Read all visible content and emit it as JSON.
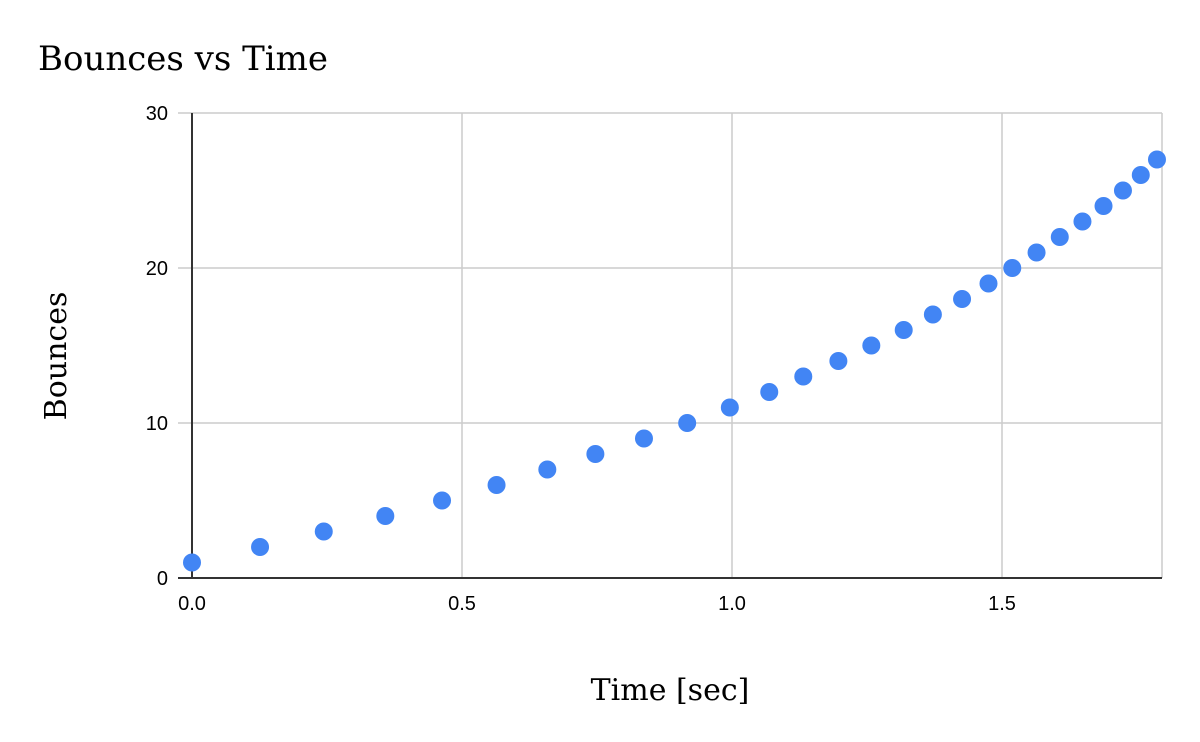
{
  "chart_data": {
    "type": "scatter",
    "title": "Bounces vs Time",
    "xlabel": "Time [sec]",
    "ylabel": "Bounces",
    "xlim": [
      0,
      1.8
    ],
    "ylim": [
      0,
      30
    ],
    "x_ticks": [
      {
        "value": 0,
        "label": "0.0"
      },
      {
        "value": 0.5,
        "label": "0.5"
      },
      {
        "value": 1.0,
        "label": "1.0"
      },
      {
        "value": 1.5,
        "label": "1.5"
      }
    ],
    "y_ticks": [
      {
        "value": 0,
        "label": "0"
      },
      {
        "value": 10,
        "label": "10"
      },
      {
        "value": 20,
        "label": "20"
      },
      {
        "value": 30,
        "label": "30"
      }
    ],
    "grid": true,
    "legend": "none",
    "color": "#4285f4",
    "series": [
      {
        "x": [
          0.0,
          0.126,
          0.244,
          0.358,
          0.463,
          0.564,
          0.658,
          0.747,
          0.837,
          0.917,
          0.996,
          1.069,
          1.132,
          1.197,
          1.258,
          1.318,
          1.372,
          1.426,
          1.475,
          1.519,
          1.564,
          1.607,
          1.649,
          1.688,
          1.724,
          1.757,
          1.787
        ],
        "y": [
          1,
          2,
          3,
          4,
          5,
          6,
          7,
          8,
          9,
          10,
          11,
          12,
          13,
          14,
          15,
          16,
          17,
          18,
          19,
          20,
          21,
          22,
          23,
          24,
          25,
          26,
          27
        ]
      }
    ]
  }
}
